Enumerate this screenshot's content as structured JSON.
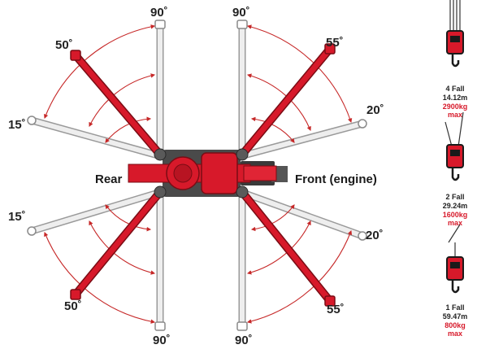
{
  "colors": {
    "boom_red": "#d7192a",
    "arc_red": "#c62828",
    "boom_grey": "#e4e4e4",
    "body_grey": "#4a4a4a",
    "text": "#1a1a1a"
  },
  "labels": {
    "rear": "Rear",
    "front": "Front (engine)"
  },
  "angles": {
    "top_left": "90˚",
    "top_right": "90˚",
    "upper_left": "50˚",
    "upper_right": "55˚",
    "mid_upper_left": "15˚",
    "mid_upper_right": "20˚",
    "mid_lower_left": "15˚",
    "mid_lower_right": "20˚",
    "lower_left": "50˚",
    "lower_right": "55˚",
    "bottom_left": "90˚",
    "bottom_right": "90˚"
  },
  "falls": [
    {
      "name": "4 Fall",
      "length": "14.12m",
      "load": "2900kg",
      "max": "max"
    },
    {
      "name": "2 Fall",
      "length": "29.24m",
      "load": "1600kg",
      "max": "max"
    },
    {
      "name": "1 Fall",
      "length": "59.47m",
      "load": "800kg",
      "max": "max"
    }
  ]
}
